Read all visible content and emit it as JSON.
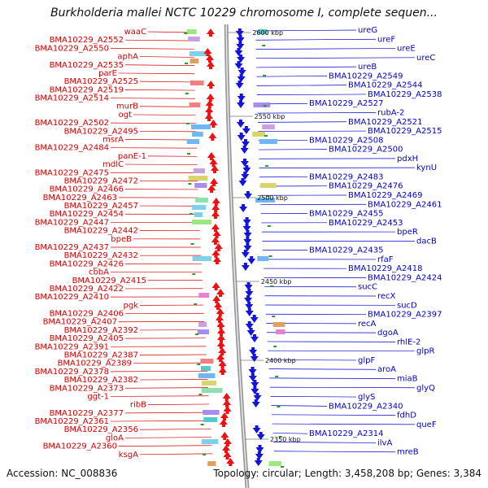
{
  "title": "Burkholderia mallei NCTC 10229 chromosome I, complete sequen...",
  "footer": {
    "accession": "Accession: NC_008836",
    "stats": "Topology: circular; Length: 3,458,208 bp; Genes: 3,384"
  },
  "colors": {
    "forward": "#ee1111",
    "reverse": "#1414dd",
    "leftLabel": "#d40000",
    "rightLabel": "#0000cc",
    "backbone": "#8c8c8c"
  },
  "kbpLabels": [
    "2600 kbp",
    "2550 kbp",
    "2500 kbp",
    "2450 kbp",
    "2400 kbp",
    "2350 kbp"
  ],
  "leftLabels": [
    "waaC",
    "BMA10229_A2552",
    "BMA10229_A2550",
    "aphA",
    "BMA10229_A2535",
    "parE",
    "BMA10229_A2525",
    "BMA10229_A2519",
    "BMA10229_A2514",
    "murB",
    "ogt",
    "BMA10229_A2502",
    "BMA10229_A2495",
    "msrA",
    "BMA10229_A2484",
    "panE-1",
    "mdlC",
    "BMA10229_A2475",
    "BMA10229_A2472",
    "BMA10229_A2466",
    "BMA10229_A2463",
    "BMA10229_A2457",
    "BMA10229_A2454",
    "BMA10229_A2447",
    "BMA10229_A2442",
    "bpeB",
    "BMA10229_A2437",
    "BMA10229_A2432",
    "BMA10229_A2426",
    "cbbA",
    "BMA10229_A2415",
    "BMA10229_A2422",
    "BMA10229_A2410",
    "pgk",
    "BMA10229_A2406",
    "BMA10229_A2407",
    "BMA10229_A2392",
    "BMA10229_A2405",
    "BMA10229_A2391",
    "BMA10229_A2387",
    "BMA10229_A2389",
    "BMA10229_A2378",
    "BMA10229_A2382",
    "BMA10229_A2373",
    "ggt-1",
    "ribB",
    "BMA10229_A2377",
    "BMA10229_A2361",
    "BMA10229_A2356",
    "gloA",
    "BMA10229_A2360",
    "ksgA"
  ],
  "rightLabels": [
    "ureG",
    "ureF",
    "ureE",
    "ureC",
    "ureB",
    "BMA10229_A2549",
    "BMA10229_A2544",
    "BMA10229_A2538",
    "BMA10229_A2527",
    "rubA-2",
    "BMA10229_A2521",
    "BMA10229_A2515",
    "BMA10229_A2508",
    "BMA10229_A2500",
    "pdxH",
    "kynU",
    "BMA10229_A2483",
    "BMA10229_A2476",
    "BMA10229_A2469",
    "BMA10229_A2461",
    "BMA10229_A2455",
    "BMA10229_A2453",
    "bpeR",
    "dacB",
    "BMA10229_A2435",
    "rfaF",
    "BMA10229_A2418",
    "BMA10229_A2424",
    "sucC",
    "recX",
    "sucD",
    "BMA10229_A2397",
    "recA",
    "dgoA",
    "rhlE-2",
    "glpR",
    "glpF",
    "aroA",
    "miaB",
    "glyQ",
    "glyS",
    "BMA10229_A2340",
    "fdhD",
    "queF",
    "BMA10229_A2314",
    "ilvA",
    "mreB"
  ]
}
